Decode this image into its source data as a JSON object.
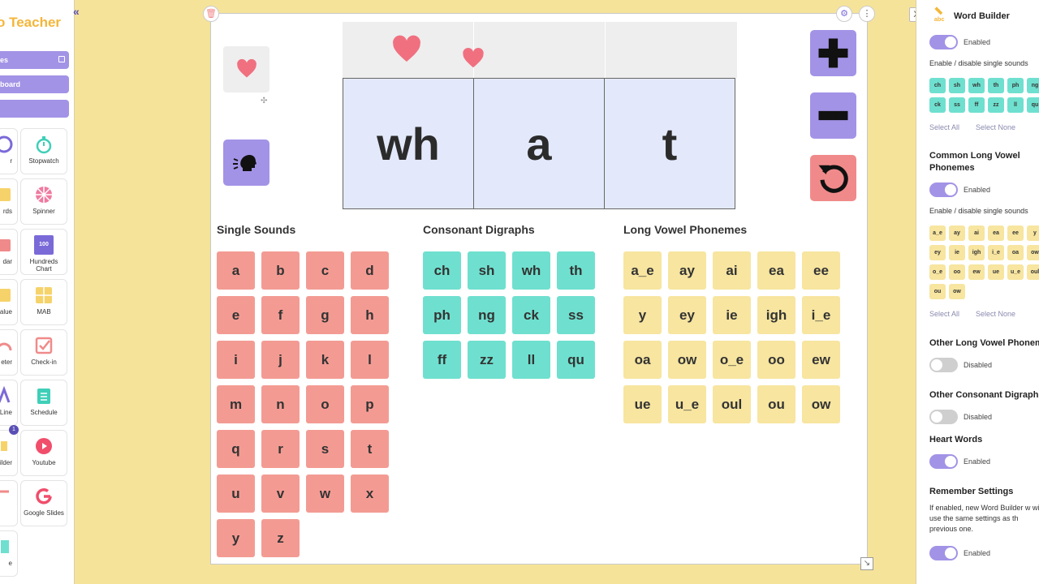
{
  "sidebar": {
    "brand": "o Teacher",
    "buttons": [
      "es",
      "board",
      ""
    ],
    "tools_partial": [
      {
        "label": "r",
        "icon": "circle-icon"
      },
      {
        "label": "rds",
        "icon": "cards-icon"
      },
      {
        "label": "dar",
        "icon": "calendar-icon"
      },
      {
        "label": "alue",
        "icon": "place-value-icon"
      },
      {
        "label": "eter",
        "icon": "meter-icon"
      },
      {
        "label": "Line",
        "icon": "timeline-icon"
      },
      {
        "label": "ilder",
        "icon": "word-builder-icon"
      },
      {
        "label": "",
        "icon": "tool-icon"
      },
      {
        "label": "e",
        "icon": "tool-icon"
      }
    ],
    "tools": [
      {
        "label": "Stopwatch",
        "icon": "stopwatch-icon"
      },
      {
        "label": "Spinner",
        "icon": "spinner-icon"
      },
      {
        "label": "Hundreds Chart",
        "icon": "hundreds-chart-icon",
        "icon_text": "100"
      },
      {
        "label": "MAB",
        "icon": "mab-icon"
      },
      {
        "label": "Check-in",
        "icon": "check-in-icon"
      },
      {
        "label": "Schedule",
        "icon": "schedule-icon"
      },
      {
        "label": "Youtube",
        "icon": "youtube-icon"
      },
      {
        "label": "Google Slides",
        "icon": "google-slides-icon"
      }
    ],
    "badge": "1"
  },
  "widget": {
    "word": [
      "wh",
      "a",
      "t"
    ],
    "sections": {
      "single": {
        "title": "Single Sounds",
        "tiles": [
          "a",
          "b",
          "c",
          "d",
          "e",
          "f",
          "g",
          "h",
          "i",
          "j",
          "k",
          "l",
          "m",
          "n",
          "o",
          "p",
          "q",
          "r",
          "s",
          "t",
          "u",
          "v",
          "w",
          "x",
          "y",
          "z"
        ]
      },
      "digraphs": {
        "title": "Consonant Digraphs",
        "tiles": [
          "ch",
          "sh",
          "wh",
          "th",
          "ph",
          "ng",
          "ck",
          "ss",
          "ff",
          "zz",
          "ll",
          "qu"
        ]
      },
      "long_vowels": {
        "title": "Long Vowel Phonemes",
        "tiles": [
          "a_e",
          "ay",
          "ai",
          "ea",
          "ee",
          "y",
          "ey",
          "ie",
          "igh",
          "i_e",
          "oa",
          "ow",
          "o_e",
          "oo",
          "ew",
          "ue",
          "u_e",
          "oul",
          "ou",
          "ow"
        ]
      }
    }
  },
  "settings": {
    "title": "Word Builder",
    "enabled_label": "Enabled",
    "disabled_label": "Disabled",
    "enable_single_text": "Enable / disable single sounds",
    "select_all": "Select All",
    "select_none": "Select None",
    "digraph_chips": [
      "ch",
      "sh",
      "wh",
      "th",
      "ph",
      "ng",
      "ck",
      "ss",
      "ff",
      "zz",
      "ll",
      "qu"
    ],
    "long_vowel_heading_1": "Common Long Vowel",
    "long_vowel_heading_2": "Phonemes",
    "long_vowel_chips": [
      "a_e",
      "ay",
      "ai",
      "ea",
      "ee",
      "y",
      "ey",
      "ie",
      "igh",
      "i_e",
      "oa",
      "ow",
      "o_e",
      "oo",
      "ew",
      "ue",
      "u_e",
      "oul",
      "ou",
      "ow"
    ],
    "other_long_vowel": "Other Long Vowel Phonem",
    "other_consonant": "Other Consonant Digraph",
    "heart_words": "Heart Words",
    "remember_settings": "Remember Settings",
    "remember_text": "If enabled, new Word Builder w will use the same settings as th previous one.",
    "close_label": "X"
  },
  "colors": {
    "accent_purple": "#a393e6",
    "single_sound_red": "#f39b93",
    "digraph_teal": "#6fe0cf",
    "vowel_yellow": "#f7e5a0",
    "heart_pink": "#f07080",
    "background": "#f6e39a"
  }
}
